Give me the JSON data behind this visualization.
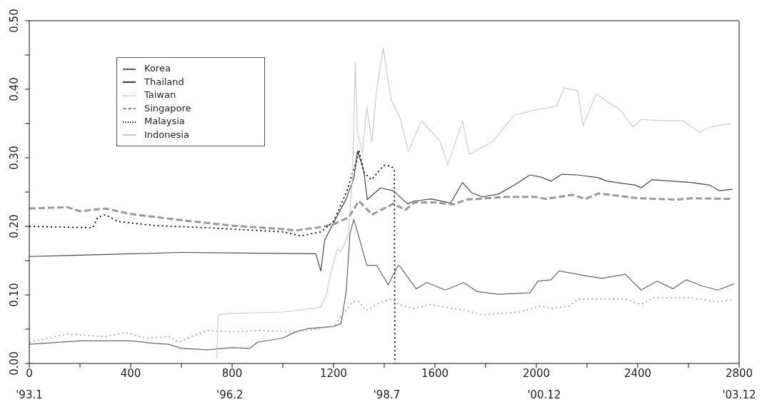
{
  "chart_data": {
    "type": "line",
    "xlim": [
      0,
      2800
    ],
    "ylim": [
      0,
      0.5
    ],
    "xticks": [
      0,
      {
        "value": 200,
        "label": null
      },
      400,
      {
        "value": 600,
        "label": null
      },
      800,
      {
        "value": 1000,
        "label": null
      },
      1200,
      {
        "value": 1400,
        "label": null
      },
      1600,
      {
        "value": 1800,
        "label": null
      },
      2000,
      {
        "value": 2200,
        "label": null
      },
      2400,
      {
        "value": 2600,
        "label": null
      },
      2800
    ],
    "x2lim": [
      "1993-01",
      "2003-12"
    ],
    "x2ticks": [
      {
        "value": "1993-01",
        "label": "'93.1"
      },
      {
        "value": "1996-02",
        "label": "'96.2"
      },
      {
        "value": "1998-07",
        "label": "'98.7"
      },
      {
        "value": "2000-12",
        "label": "'00.12"
      },
      {
        "value": "2003-12",
        "label": "'03.12"
      }
    ],
    "yticks": [
      {
        "value": 0,
        "label": "0.00"
      },
      {
        "value": 0.05,
        "label": null
      },
      {
        "value": 0.1,
        "label": "0.10"
      },
      {
        "value": 0.15,
        "label": null
      },
      {
        "value": 0.2,
        "label": "0.20"
      },
      {
        "value": 0.25,
        "label": null
      },
      {
        "value": 0.3,
        "label": "0.30"
      },
      {
        "value": 0.35,
        "label": null
      },
      {
        "value": 0.4,
        "label": "0.40"
      },
      {
        "value": 0.45,
        "label": null
      },
      {
        "value": 0.5,
        "label": "0.50"
      }
    ],
    "grid": false,
    "legend": "top left",
    "marker": "none",
    "series": [
      {
        "name": "Korea",
        "color": "#666666",
        "line_style": "solid",
        "x": [
          0,
          200,
          400,
          500,
          550,
          600,
          700,
          800,
          870,
          900,
          1000,
          1050,
          1100,
          1200,
          1230,
          1250,
          1265,
          1280,
          1300,
          1331,
          1370,
          1416,
          1455,
          1463,
          1526,
          1568,
          1641,
          1714,
          1766,
          1850,
          1975,
          2006,
          2058,
          2090,
          2194,
          2257,
          2351,
          2413,
          2476,
          2539,
          2591,
          2654,
          2716,
          2779
        ],
        "values": [
          0.028,
          0.033,
          0.033,
          0.029,
          0.028,
          0.022,
          0.02,
          0.023,
          0.022,
          0.031,
          0.037,
          0.046,
          0.051,
          0.054,
          0.058,
          0.105,
          0.19,
          0.21,
          0.185,
          0.143,
          0.143,
          0.115,
          0.143,
          0.141,
          0.109,
          0.118,
          0.107,
          0.118,
          0.105,
          0.101,
          0.103,
          0.12,
          0.122,
          0.135,
          0.128,
          0.124,
          0.13,
          0.107,
          0.12,
          0.109,
          0.122,
          0.113,
          0.107,
          0.116
        ]
      },
      {
        "name": "Thailand",
        "color": "#444444",
        "line_style": "solid",
        "x": [
          0,
          200,
          600,
          1130,
          1150,
          1165,
          1200,
          1250,
          1280,
          1295,
          1320,
          1333,
          1385,
          1436,
          1492,
          1520,
          1585,
          1662,
          1709,
          1745,
          1787,
          1850,
          1912,
          1975,
          2017,
          2058,
          2100,
          2163,
          2246,
          2277,
          2392,
          2413,
          2455,
          2612,
          2685,
          2721,
          2774
        ],
        "values": [
          0.156,
          0.158,
          0.162,
          0.16,
          0.135,
          0.18,
          0.205,
          0.24,
          0.27,
          0.31,
          0.28,
          0.239,
          0.256,
          0.252,
          0.233,
          0.237,
          0.24,
          0.234,
          0.264,
          0.249,
          0.243,
          0.247,
          0.26,
          0.275,
          0.272,
          0.266,
          0.276,
          0.275,
          0.271,
          0.266,
          0.26,
          0.256,
          0.268,
          0.264,
          0.26,
          0.252,
          0.254
        ]
      },
      {
        "name": "Taiwan",
        "color": "#aaaaaa",
        "line_style": "dotted",
        "x": [
          0,
          100,
          150,
          300,
          380,
          460,
          550,
          590,
          650,
          700,
          800,
          900,
          1050,
          1130,
          1200,
          1240,
          1275,
          1300,
          1330,
          1351,
          1380,
          1427,
          1464,
          1515,
          1578,
          1724,
          1787,
          1933,
          2017,
          2058,
          2131,
          2163,
          2351,
          2413,
          2465,
          2601,
          2716,
          2768
        ],
        "values": [
          0.031,
          0.039,
          0.043,
          0.039,
          0.045,
          0.037,
          0.039,
          0.031,
          0.041,
          0.048,
          0.046,
          0.048,
          0.046,
          0.05,
          0.054,
          0.073,
          0.09,
          0.09,
          0.077,
          0.082,
          0.088,
          0.094,
          0.085,
          0.08,
          0.086,
          0.077,
          0.071,
          0.075,
          0.084,
          0.08,
          0.084,
          0.094,
          0.094,
          0.086,
          0.096,
          0.096,
          0.09,
          0.093
        ]
      },
      {
        "name": "Singapore",
        "color": "#999999",
        "line_style": "dashed",
        "x": [
          0,
          150,
          200,
          300,
          400,
          600,
          800,
          1000,
          1050,
          1150,
          1200,
          1260,
          1300,
          1340,
          1351,
          1388,
          1436,
          1483,
          1520,
          1599,
          1672,
          1724,
          1881,
          1996,
          2038,
          2142,
          2194,
          2246,
          2402,
          2559,
          2612,
          2768
        ],
        "values": [
          0.226,
          0.228,
          0.222,
          0.226,
          0.218,
          0.209,
          0.201,
          0.196,
          0.194,
          0.199,
          0.203,
          0.213,
          0.237,
          0.222,
          0.217,
          0.224,
          0.233,
          0.224,
          0.235,
          0.235,
          0.232,
          0.239,
          0.243,
          0.243,
          0.24,
          0.246,
          0.24,
          0.248,
          0.241,
          0.239,
          0.241,
          0.24
        ]
      },
      {
        "name": "Malaysia",
        "color": "#000000",
        "line_style": "dotted",
        "x": [
          0,
          250,
          270,
          300,
          350,
          500,
          700,
          900,
          1000,
          1070,
          1150,
          1200,
          1250,
          1290,
          1300,
          1320,
          1350,
          1398,
          1427,
          1440,
          1442
        ],
        "values": [
          0.2,
          0.198,
          0.213,
          0.217,
          0.207,
          0.201,
          0.198,
          0.194,
          0.192,
          0.186,
          0.192,
          0.207,
          0.249,
          0.294,
          0.311,
          0.279,
          0.268,
          0.289,
          0.288,
          0.283,
          0
        ]
      },
      {
        "name": "Indonesia",
        "color": "#cccccc",
        "line_style": "solid",
        "x": [
          740,
          745,
          800,
          1000,
          1150,
          1173,
          1190,
          1215,
          1229,
          1257,
          1275,
          1286,
          1294,
          1314,
          1331,
          1351,
          1370,
          1396,
          1427,
          1464,
          1495,
          1547,
          1620,
          1651,
          1709,
          1735,
          1829,
          1912,
          1996,
          2079,
          2110,
          2163,
          2184,
          2236,
          2330,
          2382,
          2413,
          2507,
          2580,
          2643,
          2685,
          2768
        ],
        "values": [
          0.007,
          0.071,
          0.073,
          0.075,
          0.082,
          0.102,
          0.133,
          0.166,
          0.163,
          0.187,
          0.272,
          0.439,
          0.34,
          0.306,
          0.374,
          0.323,
          0.398,
          0.46,
          0.385,
          0.357,
          0.309,
          0.354,
          0.324,
          0.29,
          0.354,
          0.305,
          0.324,
          0.362,
          0.37,
          0.375,
          0.402,
          0.398,
          0.347,
          0.393,
          0.37,
          0.345,
          0.356,
          0.354,
          0.354,
          0.337,
          0.345,
          0.35
        ]
      }
    ]
  }
}
